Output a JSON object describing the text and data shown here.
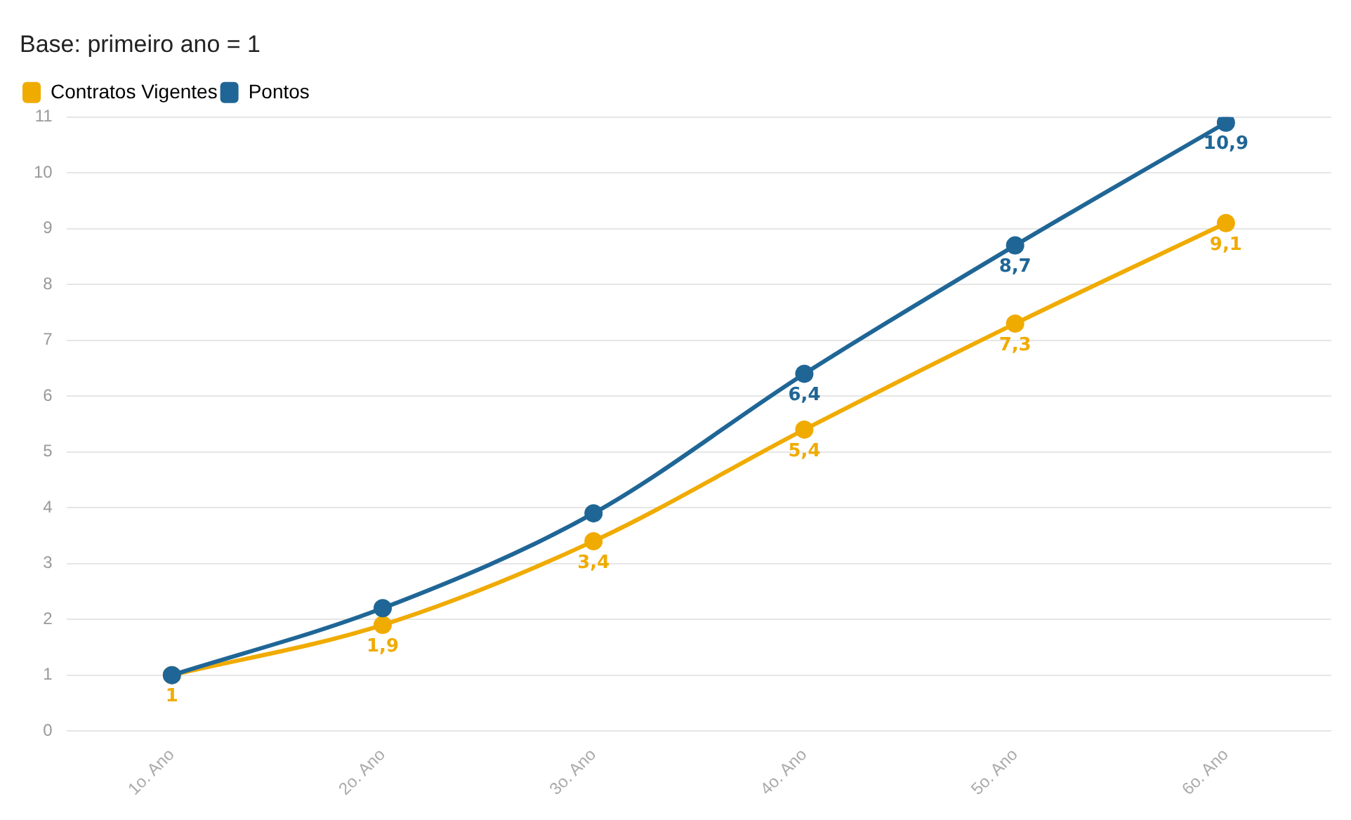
{
  "chart_data": {
    "type": "line",
    "subtitle": "Base: primeiro ano = 1",
    "categories": [
      "1o. Ano",
      "2o. Ano",
      "3o. Ano",
      "4o. Ano",
      "5o. Ano",
      "6o. Ano"
    ],
    "series": [
      {
        "name": "Contratos Vigentes",
        "color": "#f0ab00",
        "values": [
          1,
          1.9,
          3.4,
          5.4,
          7.3,
          9.1
        ],
        "value_labels": [
          "1",
          "1,9",
          "3,4",
          "5,4",
          "7,3",
          "9,1"
        ]
      },
      {
        "name": "Pontos",
        "color": "#1f6696",
        "values": [
          1,
          2.2,
          3.9,
          6.4,
          8.7,
          10.9
        ],
        "value_labels": [
          null,
          null,
          null,
          "6,4",
          "8,7",
          "10,9"
        ]
      }
    ],
    "ylim": [
      0,
      11
    ],
    "yticks": [
      0,
      1,
      2,
      3,
      4,
      5,
      6,
      7,
      8,
      9,
      10,
      11
    ],
    "grid": "y",
    "legend": "top left",
    "marker": "circle",
    "line_style": "solid"
  }
}
